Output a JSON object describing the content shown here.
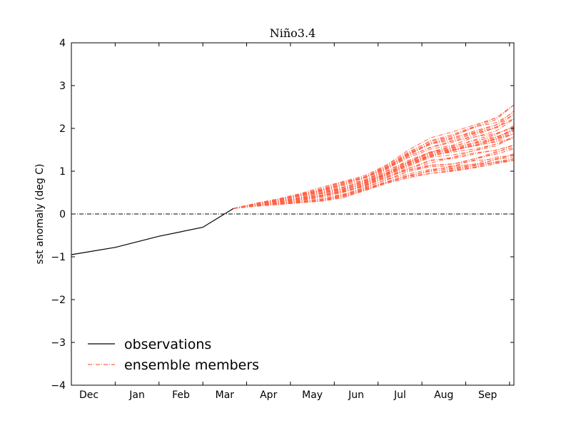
{
  "chart_data": {
    "type": "line",
    "title": "Niño3.4",
    "xlabel": "",
    "ylabel": "sst anomaly (deg C)",
    "ylim": [
      -4,
      4
    ],
    "yticks": [
      -4,
      -3,
      -2,
      -1,
      0,
      1,
      2,
      3,
      4
    ],
    "ytick_labels": [
      "−4",
      "−3",
      "−2",
      "−1",
      "0",
      "1",
      "2",
      "3",
      "4"
    ],
    "xlim": [
      0,
      10.1
    ],
    "x_tick_positions": [
      0.4,
      1.5,
      2.5,
      3.5,
      4.5,
      5.5,
      6.5,
      7.5,
      8.5,
      9.5
    ],
    "x_tick_labels": [
      "Dec",
      "Jan",
      "Feb",
      "Mar",
      "Apr",
      "May",
      "Jun",
      "Jul",
      "Aug",
      "Sep"
    ],
    "zero_line": 0,
    "grid": false,
    "legend_position": "lower-left",
    "observations": {
      "name": "observations",
      "color": "#000000",
      "x": [
        0,
        1,
        2,
        3,
        3.7
      ],
      "y": [
        -0.95,
        -0.78,
        -0.52,
        -0.31,
        0.13
      ]
    },
    "ensemble": {
      "name": "ensemble members",
      "color": "#ff6347",
      "start": [
        3.7,
        0.13
      ],
      "x": [
        4.2,
        4.7,
        5.2,
        5.7,
        6.2,
        6.7,
        7.2,
        7.7,
        8.2,
        8.7,
        9.2,
        9.7,
        10.1
      ],
      "y_low": [
        0.18,
        0.22,
        0.26,
        0.3,
        0.38,
        0.55,
        0.72,
        0.85,
        0.95,
        1.0,
        1.08,
        1.18,
        1.25
      ],
      "y_high": [
        0.25,
        0.35,
        0.47,
        0.62,
        0.76,
        0.9,
        1.15,
        1.5,
        1.78,
        1.92,
        2.08,
        2.25,
        2.55
      ],
      "members": 40
    }
  }
}
